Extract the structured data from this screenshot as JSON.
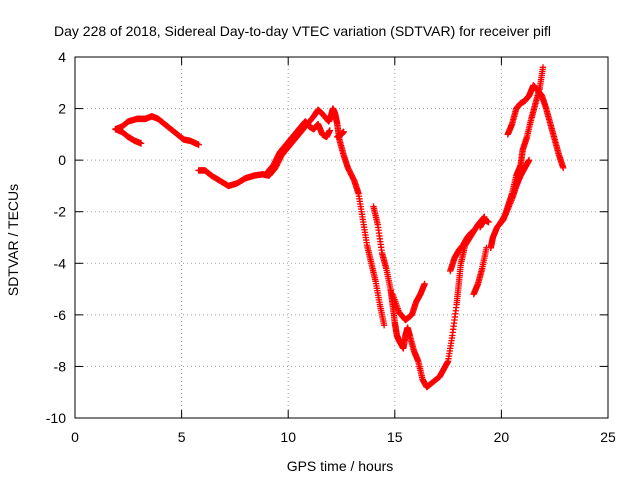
{
  "chart_data": {
    "type": "scatter",
    "title": "Day 228 of 2018, Sidereal Day-to-day VTEC variation (SDTVAR) for receiver pifl",
    "xlabel": "GPS time / hours",
    "ylabel": "SDTVAR / TECUs",
    "xlim": [
      0,
      25
    ],
    "ylim": [
      -10,
      4
    ],
    "xticks": [
      0,
      5,
      10,
      15,
      20,
      25
    ],
    "yticks": [
      -10,
      -8,
      -6,
      -4,
      -2,
      0,
      2,
      4
    ],
    "grid": true,
    "marker": "+",
    "color": "#ff0000",
    "series": [
      {
        "segments": [
          [
            [
              1.9,
              1.2
            ],
            [
              2.2,
              1.3
            ],
            [
              2.5,
              1.5
            ],
            [
              2.9,
              1.6
            ],
            [
              3.3,
              1.6
            ],
            [
              3.6,
              1.7
            ],
            [
              3.9,
              1.6
            ],
            [
              4.2,
              1.4
            ],
            [
              4.5,
              1.2
            ],
            [
              4.8,
              1.0
            ],
            [
              5.1,
              0.8
            ],
            [
              5.4,
              0.75
            ],
            [
              5.8,
              0.6
            ]
          ],
          [
            [
              1.9,
              1.2
            ],
            [
              2.2,
              1.1
            ],
            [
              2.5,
              0.9
            ],
            [
              2.8,
              0.75
            ],
            [
              3.1,
              0.65
            ]
          ],
          [
            [
              5.8,
              -0.4
            ],
            [
              6.1,
              -0.4
            ],
            [
              6.4,
              -0.6
            ],
            [
              6.8,
              -0.8
            ],
            [
              7.2,
              -1.0
            ],
            [
              7.6,
              -0.9
            ],
            [
              8.0,
              -0.7
            ],
            [
              8.4,
              -0.6
            ],
            [
              8.8,
              -0.55
            ],
            [
              9.1,
              -0.6
            ],
            [
              9.4,
              -0.3
            ],
            [
              9.7,
              0.2
            ],
            [
              10.0,
              0.5
            ],
            [
              10.3,
              0.8
            ],
            [
              10.6,
              1.1
            ],
            [
              10.9,
              1.4
            ],
            [
              11.2,
              1.7
            ],
            [
              11.4,
              1.95
            ],
            [
              11.6,
              1.8
            ],
            [
              11.9,
              1.5
            ],
            [
              12.0,
              1.7
            ],
            [
              12.1,
              2.0
            ],
            [
              12.2,
              1.8
            ],
            [
              12.3,
              1.4
            ],
            [
              12.4,
              0.8
            ],
            [
              12.6,
              0.2
            ],
            [
              12.8,
              -0.3
            ],
            [
              13.1,
              -0.8
            ],
            [
              13.3,
              -1.3
            ],
            [
              13.5,
              -2.3
            ],
            [
              13.7,
              -3.3
            ],
            [
              13.9,
              -4.0
            ],
            [
              14.1,
              -4.7
            ],
            [
              14.3,
              -5.6
            ],
            [
              14.5,
              -6.4
            ]
          ],
          [
            [
              9.0,
              -0.5
            ],
            [
              9.3,
              -0.2
            ],
            [
              9.6,
              0.3
            ],
            [
              9.9,
              0.6
            ],
            [
              10.2,
              0.9
            ],
            [
              10.5,
              1.2
            ],
            [
              10.8,
              1.5
            ],
            [
              11.0,
              1.3
            ],
            [
              11.2,
              1.2
            ],
            [
              11.4,
              1.4
            ],
            [
              11.6,
              1.0
            ],
            [
              11.8,
              0.9
            ],
            [
              11.95,
              1.15
            ]
          ],
          [
            [
              12.3,
              0.9
            ],
            [
              12.5,
              1.0
            ],
            [
              12.6,
              1.1
            ]
          ],
          [
            [
              14.0,
              -1.8
            ],
            [
              14.2,
              -2.5
            ],
            [
              14.4,
              -3.6
            ],
            [
              14.6,
              -4.2
            ],
            [
              14.8,
              -5.0
            ],
            [
              14.9,
              -5.6
            ],
            [
              15.0,
              -6.3
            ],
            [
              15.1,
              -6.8
            ],
            [
              15.2,
              -7.0
            ],
            [
              15.4,
              -7.3
            ],
            [
              15.5,
              -6.8
            ],
            [
              15.6,
              -6.5
            ],
            [
              15.7,
              -6.8
            ],
            [
              15.9,
              -7.4
            ],
            [
              16.1,
              -7.8
            ],
            [
              16.3,
              -8.5
            ],
            [
              16.5,
              -8.8
            ],
            [
              16.8,
              -8.6
            ],
            [
              17.1,
              -8.4
            ],
            [
              17.3,
              -8.1
            ],
            [
              17.5,
              -7.8
            ],
            [
              17.7,
              -6.8
            ],
            [
              17.9,
              -5.6
            ],
            [
              18.0,
              -4.8
            ],
            [
              18.1,
              -4.0
            ],
            [
              18.3,
              -3.3
            ],
            [
              18.6,
              -2.9
            ],
            [
              18.9,
              -2.5
            ],
            [
              19.2,
              -2.2
            ]
          ],
          [
            [
              14.9,
              -5.2
            ],
            [
              15.2,
              -5.9
            ],
            [
              15.5,
              -6.2
            ],
            [
              15.8,
              -6.0
            ],
            [
              16.0,
              -5.5
            ],
            [
              16.2,
              -5.2
            ],
            [
              16.4,
              -4.8
            ]
          ],
          [
            [
              17.6,
              -4.3
            ],
            [
              17.8,
              -3.8
            ],
            [
              18.0,
              -3.5
            ],
            [
              18.2,
              -3.3
            ],
            [
              18.4,
              -3.0
            ],
            [
              18.6,
              -2.8
            ]
          ],
          [
            [
              18.7,
              -5.2
            ],
            [
              18.9,
              -4.8
            ],
            [
              19.1,
              -4.2
            ],
            [
              19.3,
              -3.4
            ]
          ],
          [
            [
              19.5,
              -3.4
            ],
            [
              19.6,
              -3.0
            ],
            [
              19.8,
              -2.6
            ],
            [
              20.1,
              -2.3
            ],
            [
              20.3,
              -1.8
            ],
            [
              20.5,
              -1.3
            ],
            [
              20.7,
              -0.6
            ],
            [
              20.9,
              -0.2
            ],
            [
              21.0,
              0.4
            ],
            [
              21.2,
              0.9
            ],
            [
              21.4,
              1.6
            ],
            [
              21.6,
              2.2
            ],
            [
              21.8,
              2.8
            ],
            [
              21.95,
              3.6
            ]
          ],
          [
            [
              20.3,
              1.0
            ],
            [
              20.5,
              1.4
            ],
            [
              20.7,
              2.0
            ],
            [
              20.9,
              2.2
            ],
            [
              21.1,
              2.3
            ],
            [
              21.3,
              2.5
            ],
            [
              21.5,
              2.9
            ],
            [
              21.7,
              2.7
            ],
            [
              21.9,
              2.5
            ],
            [
              22.1,
              2.0
            ],
            [
              22.3,
              1.4
            ],
            [
              22.5,
              0.8
            ],
            [
              22.7,
              0.2
            ],
            [
              22.9,
              -0.3
            ]
          ],
          [
            [
              19.9,
              -2.5
            ],
            [
              20.2,
              -2.1
            ],
            [
              20.5,
              -1.5
            ],
            [
              20.7,
              -1.0
            ],
            [
              20.9,
              -0.6
            ],
            [
              21.1,
              -0.3
            ],
            [
              21.3,
              0.0
            ]
          ],
          [
            [
              19.0,
              -2.6
            ],
            [
              19.2,
              -2.3
            ],
            [
              19.4,
              -2.4
            ]
          ]
        ]
      }
    ]
  }
}
